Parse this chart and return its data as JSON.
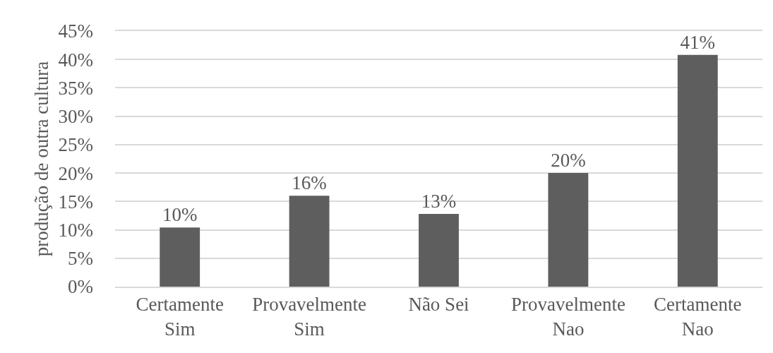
{
  "chart_data": {
    "type": "bar",
    "ylabel": "produção de outra cultura",
    "categories": [
      "Certamente Sim",
      "Provavelmente Sim",
      "Não Sei",
      "Provavelmente Nao",
      "Certamente Nao"
    ],
    "values": [
      10.4,
      16,
      12.8,
      20,
      40.8
    ],
    "value_labels": [
      "10%",
      "16%",
      "13%",
      "20%",
      "41%"
    ],
    "color": "#5e5e5e",
    "ylim": [
      0,
      45
    ],
    "yticks": [
      {
        "value": 0,
        "label": "0%"
      },
      {
        "value": 5,
        "label": "5%"
      },
      {
        "value": 10,
        "label": "10%"
      },
      {
        "value": 15,
        "label": "15%"
      },
      {
        "value": 20,
        "label": "20%"
      },
      {
        "value": 25,
        "label": "25%"
      },
      {
        "value": 30,
        "label": "30%"
      },
      {
        "value": 35,
        "label": "35%"
      },
      {
        "value": 40,
        "label": "40%"
      },
      {
        "value": 45,
        "label": "45%"
      }
    ],
    "grid": "y"
  }
}
